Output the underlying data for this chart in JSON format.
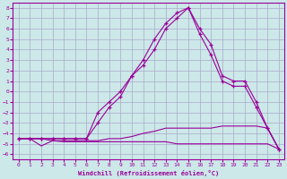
{
  "xlabel": "Windchill (Refroidissement éolien,°C)",
  "background_color": "#cce8e8",
  "grid_color": "#aaaacc",
  "line_color": "#990099",
  "x_ticks": [
    0,
    1,
    2,
    3,
    4,
    5,
    6,
    7,
    8,
    9,
    10,
    11,
    12,
    13,
    14,
    15,
    16,
    17,
    18,
    19,
    20,
    21,
    22,
    23
  ],
  "y_ticks": [
    8,
    7,
    6,
    5,
    4,
    3,
    2,
    1,
    0,
    -1,
    -2,
    -3,
    -4,
    -5,
    -6
  ],
  "xlim": [
    -0.5,
    23.5
  ],
  "ylim": [
    -6.5,
    8.5
  ],
  "lines": [
    {
      "x": [
        0,
        1,
        2,
        3,
        4,
        5,
        6,
        7,
        8,
        9,
        10,
        11,
        12,
        13,
        14,
        15,
        16,
        17,
        18,
        19,
        20,
        21,
        22,
        23
      ],
      "y": [
        -4.5,
        -4.5,
        -5.2,
        -4.7,
        -4.8,
        -4.8,
        -4.8,
        -4.8,
        -4.8,
        -4.8,
        -4.8,
        -4.8,
        -4.8,
        -4.8,
        -5.0,
        -5.0,
        -5.0,
        -5.0,
        -5.0,
        -5.0,
        -5.0,
        -5.0,
        -5.0,
        -5.5
      ],
      "marker": false
    },
    {
      "x": [
        0,
        1,
        2,
        3,
        4,
        5,
        6,
        7,
        8,
        9,
        10,
        11,
        12,
        13,
        14,
        15,
        16,
        17,
        18,
        19,
        20,
        21,
        22,
        23
      ],
      "y": [
        -4.5,
        -4.5,
        -4.5,
        -4.7,
        -4.7,
        -4.7,
        -4.7,
        -4.7,
        -4.5,
        -4.5,
        -4.3,
        -4.0,
        -3.8,
        -3.5,
        -3.5,
        -3.5,
        -3.5,
        -3.5,
        -3.3,
        -3.3,
        -3.3,
        -3.3,
        -3.5,
        -5.5
      ],
      "marker": false
    },
    {
      "x": [
        0,
        1,
        2,
        3,
        4,
        5,
        6,
        7,
        8,
        9,
        10,
        11,
        12,
        13,
        14,
        15,
        16,
        17,
        18,
        19,
        20,
        21,
        22,
        23
      ],
      "y": [
        -4.5,
        -4.5,
        -4.5,
        -4.5,
        -4.5,
        -4.5,
        -4.5,
        -3.0,
        -1.5,
        -0.5,
        1.5,
        3.0,
        5.0,
        6.5,
        7.5,
        8.0,
        6.0,
        4.5,
        1.5,
        1.0,
        1.0,
        -1.0,
        -3.5,
        -5.5
      ],
      "marker": true
    },
    {
      "x": [
        0,
        1,
        2,
        3,
        4,
        5,
        6,
        7,
        8,
        9,
        10,
        11,
        12,
        13,
        14,
        15,
        16,
        17,
        18,
        19,
        20,
        21,
        22,
        23
      ],
      "y": [
        -4.5,
        -4.5,
        -4.5,
        -4.5,
        -4.5,
        -4.5,
        -4.5,
        -2.0,
        -1.0,
        0.0,
        1.5,
        2.5,
        4.0,
        6.0,
        7.0,
        8.0,
        5.5,
        3.5,
        1.0,
        0.5,
        0.5,
        -1.5,
        -3.5,
        -5.5
      ],
      "marker": true
    }
  ]
}
